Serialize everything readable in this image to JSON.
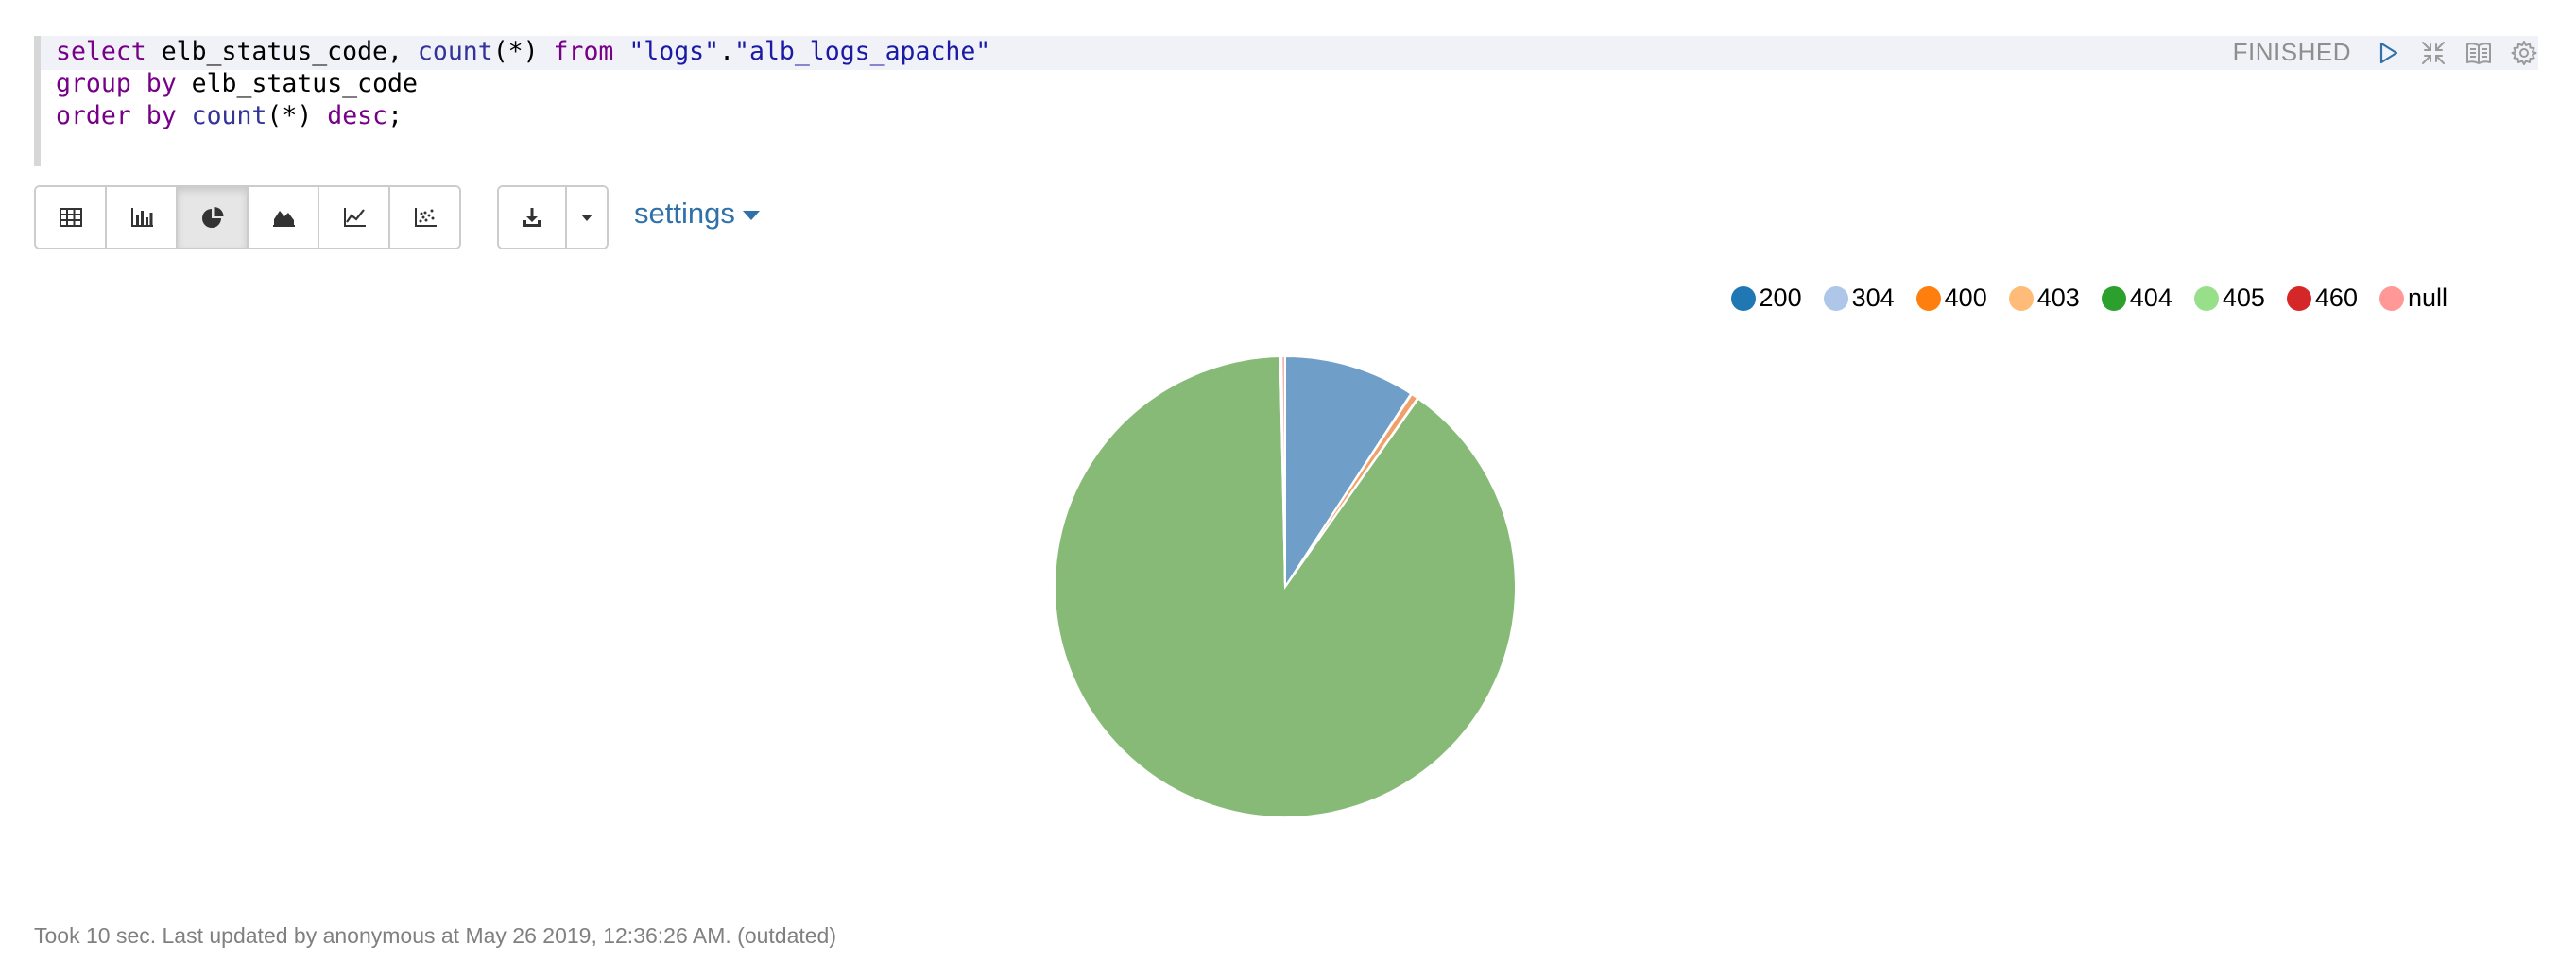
{
  "editor": {
    "code_lines": [
      [
        {
          "t": "select",
          "c": "kw"
        },
        {
          "t": " elb_status_code, ",
          "c": ""
        },
        {
          "t": "count",
          "c": "fn"
        },
        {
          "t": "(*) ",
          "c": ""
        },
        {
          "t": "from",
          "c": "kw"
        },
        {
          "t": " ",
          "c": ""
        },
        {
          "t": "\"logs\"",
          "c": "str"
        },
        {
          "t": ".",
          "c": ""
        },
        {
          "t": "\"alb_logs_apache\"",
          "c": "str"
        }
      ],
      [
        {
          "t": "group",
          "c": "kw"
        },
        {
          "t": " ",
          "c": ""
        },
        {
          "t": "by",
          "c": "kw"
        },
        {
          "t": " elb_status_code",
          "c": ""
        }
      ],
      [
        {
          "t": "order",
          "c": "kw"
        },
        {
          "t": " ",
          "c": ""
        },
        {
          "t": "by",
          "c": "kw"
        },
        {
          "t": " ",
          "c": ""
        },
        {
          "t": "count",
          "c": "fn"
        },
        {
          "t": "(*) ",
          "c": ""
        },
        {
          "t": "desc",
          "c": "kw"
        },
        {
          "t": ";",
          "c": ""
        }
      ]
    ]
  },
  "paragraph": {
    "status": "FINISHED",
    "controls": [
      "run-icon",
      "collapse-icon",
      "book-icon",
      "gear-icon"
    ]
  },
  "toolbar": {
    "vis_buttons": [
      {
        "icon": "table-icon",
        "active": false
      },
      {
        "icon": "bar-chart-icon",
        "active": false
      },
      {
        "icon": "pie-chart-icon",
        "active": true
      },
      {
        "icon": "area-chart-icon",
        "active": false
      },
      {
        "icon": "line-chart-icon",
        "active": false
      },
      {
        "icon": "scatter-chart-icon",
        "active": false
      }
    ],
    "download_icon": "download-icon",
    "dropdown_icon": "caret-down-icon",
    "settings_label": "settings"
  },
  "chart_data": {
    "type": "pie",
    "legend_position": "top-right",
    "categories": [
      "200",
      "304",
      "400",
      "403",
      "404",
      "405",
      "460",
      "null"
    ],
    "colors": [
      "#1f77b4",
      "#aec7e8",
      "#ff7f0e",
      "#ffbb78",
      "#2ca02c",
      "#98df8a",
      "#d62728",
      "#ff9896"
    ],
    "slice_colors": [
      "#6f9fc8",
      "#c7d7ec",
      "#f2a06a",
      "#f7c79a",
      "#87ba77",
      "#b8e3ac",
      "#d9605f",
      "#f3b4b2"
    ],
    "values": [
      9.2,
      0.05,
      0.5,
      0.05,
      89.9,
      0.05,
      0.05,
      0.25
    ]
  },
  "footer": {
    "text": "Took 10 sec. Last updated by anonymous at May 26 2019, 12:36:26 AM. (outdated)"
  }
}
